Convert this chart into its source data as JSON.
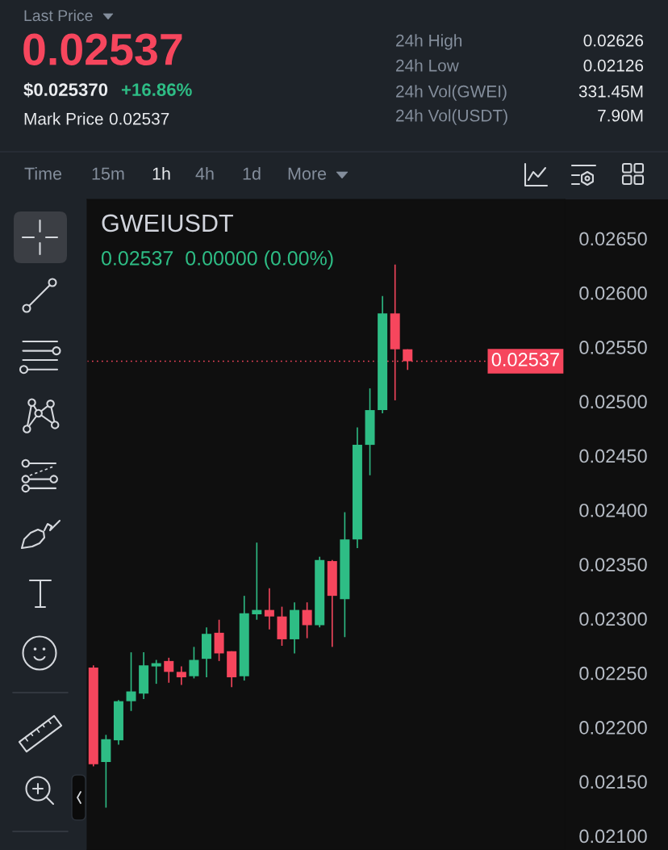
{
  "chart_data": {
    "type": "candlestick",
    "title": "GWEIUSDT",
    "subtitle": "0.02537  0.00000 (0.00%)",
    "annotations": [
      "Last Price",
      "0.02537",
      "$0.025370",
      "+16.86%",
      "Mark Price",
      "0.02537",
      "24h High",
      "0.02626",
      "24h Low",
      "0.02126",
      "24h Vol(GWEI)",
      "331.45M",
      "24h Vol(USDT)",
      "7.90M",
      "Time",
      "15m",
      "1h",
      "4h",
      "1d",
      "More"
    ],
    "categories": [
      null,
      null,
      null,
      null,
      null,
      null,
      null,
      null,
      null,
      null,
      null,
      null,
      null,
      null,
      null,
      null,
      null,
      null,
      null,
      null,
      null,
      null,
      null,
      null,
      null,
      null,
      null,
      null,
      null,
      null,
      null,
      null,
      null,
      null,
      null,
      null,
      null,
      null
    ],
    "ohlc": [
      [
        0.02255,
        0.02257,
        0.02164,
        0.02166
      ],
      [
        0.02168,
        0.02193,
        0.02126,
        0.02189
      ],
      [
        0.02188,
        0.02225,
        0.02184,
        0.02224
      ],
      [
        0.02224,
        0.02269,
        0.02215,
        0.02233
      ],
      [
        0.02231,
        0.02269,
        0.02226,
        0.02257
      ],
      [
        0.02256,
        0.02262,
        0.0224,
        0.02259
      ],
      [
        0.02261,
        0.02264,
        0.02241,
        0.02251
      ],
      [
        0.02251,
        0.02256,
        0.02239,
        0.02246
      ],
      [
        0.02247,
        0.02274,
        0.02245,
        0.02262
      ],
      [
        0.02263,
        0.02292,
        0.02246,
        0.02286
      ],
      [
        0.02287,
        0.02299,
        0.02261,
        0.02268
      ],
      [
        0.0227,
        0.0227,
        0.02237,
        0.02246
      ],
      [
        0.02247,
        0.02321,
        0.02243,
        0.02305
      ],
      [
        0.02304,
        0.0237,
        0.02299,
        0.02308
      ],
      [
        0.02308,
        0.02328,
        0.0229,
        0.02302
      ],
      [
        0.02302,
        0.02311,
        0.02275,
        0.02281
      ],
      [
        0.02281,
        0.02315,
        0.02268,
        0.02308
      ],
      [
        0.02308,
        0.02315,
        0.02282,
        0.02294
      ],
      [
        0.02294,
        0.02357,
        0.02292,
        0.02354
      ],
      [
        0.02353,
        0.02354,
        0.02274,
        0.02321
      ],
      [
        0.02318,
        0.02398,
        0.02283,
        0.02373
      ],
      [
        0.02373,
        0.02476,
        0.02365,
        0.0246
      ],
      [
        0.0246,
        0.02512,
        0.02432,
        0.02492
      ],
      [
        0.02492,
        0.02597,
        0.02489,
        0.02581
      ],
      [
        0.02581,
        0.02626,
        0.02501,
        0.02548
      ],
      [
        0.02548,
        0.02548,
        0.02529,
        0.02537
      ],
      null,
      null,
      null,
      null,
      null,
      null,
      null,
      null,
      null,
      null,
      null,
      null
    ],
    "colors": [
      "#f6465d",
      "#2ebd85",
      "#2ebd85",
      "#2ebd85",
      "#2ebd85",
      "#2ebd85",
      "#f6465d",
      "#f6465d",
      "#2ebd85",
      "#2ebd85",
      "#f6465d",
      "#f6465d",
      "#2ebd85",
      "#2ebd85",
      "#f6465d",
      "#f6465d",
      "#2ebd85",
      "#f6465d",
      "#2ebd85",
      "#f6465d",
      "#2ebd85",
      "#2ebd85",
      "#2ebd85",
      "#2ebd85",
      "#f6465d",
      "#f6465d",
      null,
      null,
      null,
      null,
      null,
      null,
      null,
      null,
      null,
      null,
      null,
      null
    ],
    "ylim": [
      0.02087,
      0.02686
    ],
    "yticks": [
      {
        "value": 0.021,
        "label": "0.02100"
      },
      {
        "value": 0.0215,
        "label": "0.02150"
      },
      {
        "value": 0.022,
        "label": "0.02200"
      },
      {
        "value": 0.0225,
        "label": "0.02250"
      },
      {
        "value": 0.023,
        "label": "0.02300"
      },
      {
        "value": 0.0235,
        "label": "0.02350"
      },
      {
        "value": 0.024,
        "label": "0.02400"
      },
      {
        "value": 0.0245,
        "label": "0.02450"
      },
      {
        "value": 0.025,
        "label": "0.02500"
      },
      {
        "value": 0.0255,
        "label": "0.02550"
      },
      {
        "value": 0.026,
        "label": "0.02600"
      },
      {
        "value": 0.0265,
        "label": "0.02650"
      }
    ],
    "tick_labels": "y",
    "ref_lines": [
      {
        "axis": "y",
        "value": 0.02537,
        "label": "0.02537",
        "color": "#f6465d",
        "line_style": "dotted"
      }
    ]
  }
}
